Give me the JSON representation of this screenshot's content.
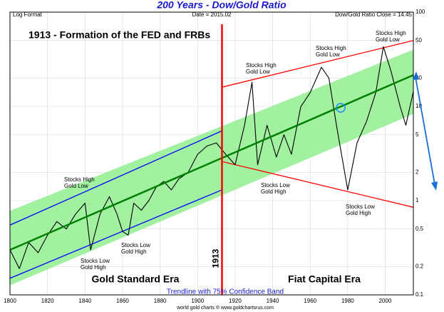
{
  "chart_data": {
    "type": "line",
    "title": "200 Years - Dow/Gold Ratio",
    "header": [
      "Log Format",
      "Date = 2015.02",
      "Dow/Gold Ratio Close = 14.45"
    ],
    "footer": "world gold charts ® www.goldchartsrus.com",
    "log_scale": true,
    "grid": true,
    "x": [
      1800,
      1805,
      1810,
      1815,
      1820,
      1825,
      1830,
      1835,
      1840,
      1843,
      1848,
      1853,
      1857,
      1860,
      1863,
      1866,
      1870,
      1874,
      1878,
      1882,
      1886,
      1890,
      1895,
      1900,
      1905,
      1910,
      1915,
      1920,
      1925,
      1929,
      1932,
      1937,
      1942,
      1946,
      1950,
      1955,
      1960,
      1966,
      1970,
      1974,
      1980,
      1985,
      1990,
      1995,
      1999,
      2003,
      2008,
      2011,
      2015
    ],
    "series": [
      {
        "color": "#000000",
        "values": [
          0.3,
          0.19,
          0.36,
          0.28,
          0.43,
          0.6,
          0.5,
          0.72,
          0.94,
          0.3,
          0.72,
          1.1,
          0.72,
          0.47,
          0.43,
          0.94,
          0.79,
          1.0,
          1.4,
          1.6,
          1.3,
          1.7,
          2.0,
          3.1,
          3.8,
          4.1,
          3.1,
          2.4,
          6.3,
          18,
          2.4,
          6.3,
          2.9,
          5.0,
          3.1,
          9.9,
          14,
          26,
          20,
          6.3,
          1.3,
          4.1,
          6.9,
          14,
          43,
          24,
          9.9,
          6.3,
          14.45
        ]
      }
    ],
    "xlim": [
      1800,
      2015
    ],
    "xticks": [
      1800,
      1820,
      1840,
      1860,
      1880,
      1900,
      1920,
      1940,
      1960,
      1980,
      2000
    ],
    "ylim": [
      0.1,
      100
    ],
    "yticks": [
      0.1,
      0.2,
      0.5,
      1,
      2,
      5,
      10,
      20,
      50,
      100
    ],
    "band": {
      "color": "#90ee90",
      "upper": [
        [
          1800,
          0.78
        ],
        [
          2015,
          40
        ]
      ],
      "lower": [
        [
          1800,
          0.126
        ],
        [
          2015,
          8.3
        ]
      ]
    },
    "trendline": {
      "color": "#008000",
      "points": [
        [
          1800,
          0.3
        ],
        [
          2015,
          21.5
        ]
      ]
    },
    "channels": [
      {
        "color": "#0000ff",
        "points": [
          [
            1800,
            0.55
          ],
          [
            1913,
            5.5
          ]
        ]
      },
      {
        "color": "#0000ff",
        "points": [
          [
            1800,
            0.15
          ],
          [
            1913,
            1.3
          ]
        ]
      },
      {
        "color": "#ff0000",
        "points": [
          [
            1913,
            16
          ],
          [
            2015,
            50
          ]
        ]
      },
      {
        "color": "#ff0000",
        "points": [
          [
            1913,
            2.6
          ],
          [
            2015,
            0.85
          ]
        ]
      }
    ],
    "event_x": 1913,
    "event_label": "1913",
    "headline": "1913 - Formation of the FED and FRBs",
    "eras": [
      "Gold Standard Era",
      "Fiat Capital Era"
    ],
    "band_caption": "Trendline with 75% Confidence Band",
    "annotations": [
      [
        "Stocks High",
        "Gold Low"
      ],
      [
        "Stocks High",
        "Gold Low"
      ],
      [
        "Stocks High",
        "Gold Low"
      ],
      [
        "Stocks High",
        "Gold Low"
      ],
      [
        "Stocks Low",
        "Gold High"
      ],
      [
        "Stocks Low",
        "Gold High"
      ],
      [
        "Stocks Low",
        "Gold High"
      ],
      [
        "Stocks Low",
        "Gold High"
      ]
    ]
  }
}
